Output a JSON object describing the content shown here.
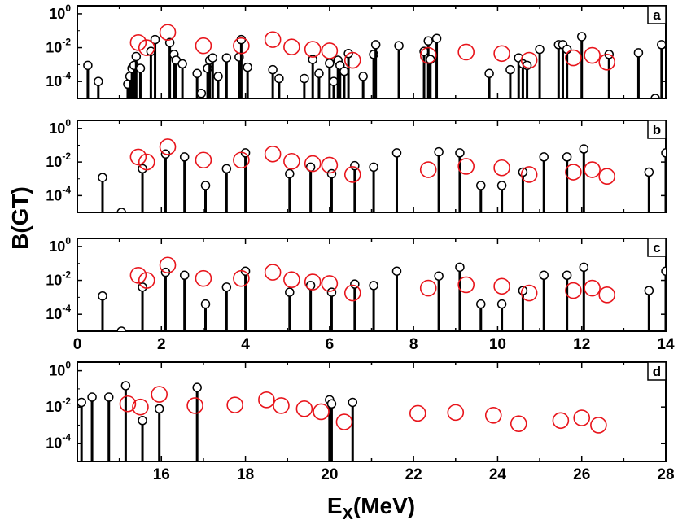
{
  "chart_data": {
    "type": "scatter",
    "ylabel": "B(GT)",
    "xlabel": "E",
    "xlabel_sub": "X",
    "xlabel_unit": "(MeV)",
    "yscale": "log",
    "ylim": [
      1e-05,
      3
    ],
    "y_ticks": [
      {
        "base": "10",
        "exp": "0",
        "value": 1
      },
      {
        "base": "10",
        "exp": "-2",
        "value": 0.01
      },
      {
        "base": "10",
        "exp": "-4",
        "value": 0.0001
      }
    ],
    "experiment": [
      {
        "x": 1.45,
        "y": 0.02
      },
      {
        "x": 1.65,
        "y": 0.01
      },
      {
        "x": 2.15,
        "y": 0.08
      },
      {
        "x": 3.0,
        "y": 0.013
      },
      {
        "x": 3.9,
        "y": 0.013
      },
      {
        "x": 4.65,
        "y": 0.03
      },
      {
        "x": 5.1,
        "y": 0.011
      },
      {
        "x": 5.6,
        "y": 0.008
      },
      {
        "x": 6.0,
        "y": 0.0065
      },
      {
        "x": 6.55,
        "y": 0.0018
      },
      {
        "x": 8.35,
        "y": 0.0035
      },
      {
        "x": 9.25,
        "y": 0.0055
      },
      {
        "x": 10.1,
        "y": 0.0045
      },
      {
        "x": 10.75,
        "y": 0.0018
      },
      {
        "x": 11.8,
        "y": 0.0025
      },
      {
        "x": 12.25,
        "y": 0.0035
      },
      {
        "x": 12.6,
        "y": 0.0014
      },
      {
        "x": 15.2,
        "y": 0.015
      },
      {
        "x": 15.5,
        "y": 0.01
      },
      {
        "x": 15.95,
        "y": 0.05
      },
      {
        "x": 16.8,
        "y": 0.012
      },
      {
        "x": 17.75,
        "y": 0.013
      },
      {
        "x": 18.5,
        "y": 0.025
      },
      {
        "x": 18.85,
        "y": 0.012
      },
      {
        "x": 19.4,
        "y": 0.008
      },
      {
        "x": 19.8,
        "y": 0.0055
      },
      {
        "x": 20.35,
        "y": 0.0015
      },
      {
        "x": 22.1,
        "y": 0.0045
      },
      {
        "x": 23.0,
        "y": 0.005
      },
      {
        "x": 23.9,
        "y": 0.0035
      },
      {
        "x": 24.5,
        "y": 0.0012
      },
      {
        "x": 25.5,
        "y": 0.0018
      },
      {
        "x": 26.0,
        "y": 0.0025
      },
      {
        "x": 26.4,
        "y": 0.001
      }
    ],
    "panels": [
      {
        "tag": "a",
        "xlim": [
          0,
          14
        ],
        "x_ticks": [],
        "theory": [
          {
            "x": 0.25,
            "y": 0.0009
          },
          {
            "x": 0.5,
            "y": 0.0001
          },
          {
            "x": 1.2,
            "y": 7e-05
          },
          {
            "x": 1.25,
            "y": 0.0002
          },
          {
            "x": 1.3,
            "y": 0.0006
          },
          {
            "x": 1.35,
            "y": 0.0009
          },
          {
            "x": 1.4,
            "y": 0.003
          },
          {
            "x": 1.5,
            "y": 0.0006
          },
          {
            "x": 1.75,
            "y": 0.006
          },
          {
            "x": 1.85,
            "y": 0.03
          },
          {
            "x": 2.2,
            "y": 0.02
          },
          {
            "x": 2.3,
            "y": 0.004
          },
          {
            "x": 2.35,
            "y": 0.0018
          },
          {
            "x": 2.5,
            "y": 0.0011
          },
          {
            "x": 2.85,
            "y": 0.0003
          },
          {
            "x": 2.95,
            "y": 2e-05
          },
          {
            "x": 3.1,
            "y": 0.0006
          },
          {
            "x": 3.15,
            "y": 0.0018
          },
          {
            "x": 3.22,
            "y": 0.0025
          },
          {
            "x": 3.35,
            "y": 0.0002
          },
          {
            "x": 3.55,
            "y": 0.0025
          },
          {
            "x": 3.85,
            "y": 0.0028
          },
          {
            "x": 3.9,
            "y": 0.03
          },
          {
            "x": 4.05,
            "y": 0.0007
          },
          {
            "x": 4.65,
            "y": 0.0005
          },
          {
            "x": 4.8,
            "y": 0.00015
          },
          {
            "x": 5.4,
            "y": 0.00015
          },
          {
            "x": 5.6,
            "y": 0.002
          },
          {
            "x": 5.75,
            "y": 0.0003
          },
          {
            "x": 6.0,
            "y": 0.0012
          },
          {
            "x": 6.1,
            "y": 0.0001
          },
          {
            "x": 6.2,
            "y": 0.0018
          },
          {
            "x": 6.25,
            "y": 0.0009
          },
          {
            "x": 6.35,
            "y": 0.0004
          },
          {
            "x": 6.45,
            "y": 0.0045
          },
          {
            "x": 6.8,
            "y": 0.0002
          },
          {
            "x": 7.05,
            "y": 0.004
          },
          {
            "x": 7.1,
            "y": 0.015
          },
          {
            "x": 7.65,
            "y": 0.013
          },
          {
            "x": 8.25,
            "y": 0.006
          },
          {
            "x": 8.35,
            "y": 0.025
          },
          {
            "x": 8.4,
            "y": 0.002
          },
          {
            "x": 8.55,
            "y": 0.035
          },
          {
            "x": 9.8,
            "y": 0.0003
          },
          {
            "x": 10.3,
            "y": 0.0005
          },
          {
            "x": 10.5,
            "y": 0.0025
          },
          {
            "x": 10.6,
            "y": 0.0011
          },
          {
            "x": 10.7,
            "y": 0.0009
          },
          {
            "x": 11.0,
            "y": 0.008
          },
          {
            "x": 11.45,
            "y": 0.015
          },
          {
            "x": 11.55,
            "y": 0.015
          },
          {
            "x": 11.65,
            "y": 0.008
          },
          {
            "x": 12.0,
            "y": 0.045
          },
          {
            "x": 12.65,
            "y": 0.004
          },
          {
            "x": 13.35,
            "y": 0.005
          },
          {
            "x": 13.9,
            "y": 0.015
          },
          {
            "x": 13.75,
            "y": 1e-05
          }
        ]
      },
      {
        "tag": "b",
        "xlim": [
          0,
          14
        ],
        "x_ticks": [],
        "theory": [
          {
            "x": 0.6,
            "y": 0.0012
          },
          {
            "x": 1.05,
            "y": 1e-05
          },
          {
            "x": 1.55,
            "y": 0.004
          },
          {
            "x": 2.1,
            "y": 0.03
          },
          {
            "x": 2.55,
            "y": 0.02
          },
          {
            "x": 3.05,
            "y": 0.0004
          },
          {
            "x": 3.55,
            "y": 0.004
          },
          {
            "x": 4.0,
            "y": 0.035
          },
          {
            "x": 5.05,
            "y": 0.002
          },
          {
            "x": 5.55,
            "y": 0.005
          },
          {
            "x": 6.05,
            "y": 0.002
          },
          {
            "x": 6.6,
            "y": 0.006
          },
          {
            "x": 7.05,
            "y": 0.005
          },
          {
            "x": 7.6,
            "y": 0.035
          },
          {
            "x": 8.6,
            "y": 0.04
          },
          {
            "x": 9.1,
            "y": 0.035
          },
          {
            "x": 9.6,
            "y": 0.0004
          },
          {
            "x": 10.1,
            "y": 0.0004
          },
          {
            "x": 10.6,
            "y": 0.0025
          },
          {
            "x": 11.1,
            "y": 0.02
          },
          {
            "x": 11.65,
            "y": 0.02
          },
          {
            "x": 12.05,
            "y": 0.06
          },
          {
            "x": 13.6,
            "y": 0.0025
          },
          {
            "x": 14.0,
            "y": 0.035
          }
        ]
      },
      {
        "tag": "c",
        "xlim": [
          0,
          14
        ],
        "x_ticks": [
          "0",
          "2",
          "4",
          "6",
          "8",
          "10",
          "12",
          "14"
        ],
        "theory": [
          {
            "x": 0.6,
            "y": 0.0012
          },
          {
            "x": 1.05,
            "y": 1e-05
          },
          {
            "x": 1.55,
            "y": 0.004
          },
          {
            "x": 2.1,
            "y": 0.03
          },
          {
            "x": 2.55,
            "y": 0.02
          },
          {
            "x": 3.05,
            "y": 0.0004
          },
          {
            "x": 3.55,
            "y": 0.004
          },
          {
            "x": 4.0,
            "y": 0.035
          },
          {
            "x": 5.05,
            "y": 0.002
          },
          {
            "x": 5.55,
            "y": 0.005
          },
          {
            "x": 6.05,
            "y": 0.002
          },
          {
            "x": 6.6,
            "y": 0.006
          },
          {
            "x": 7.05,
            "y": 0.005
          },
          {
            "x": 7.6,
            "y": 0.035
          },
          {
            "x": 8.6,
            "y": 0.018
          },
          {
            "x": 9.1,
            "y": 0.06
          },
          {
            "x": 9.6,
            "y": 0.0004
          },
          {
            "x": 10.1,
            "y": 0.0004
          },
          {
            "x": 10.6,
            "y": 0.0025
          },
          {
            "x": 11.1,
            "y": 0.02
          },
          {
            "x": 11.65,
            "y": 0.02
          },
          {
            "x": 12.05,
            "y": 0.06
          },
          {
            "x": 13.6,
            "y": 0.0025
          },
          {
            "x": 14.0,
            "y": 0.035
          }
        ]
      },
      {
        "tag": "d",
        "xlim": [
          14,
          28
        ],
        "x_ticks": [
          "16",
          "18",
          "20",
          "22",
          "24",
          "26",
          "28"
        ],
        "theory": [
          {
            "x": 14.1,
            "y": 0.018
          },
          {
            "x": 14.35,
            "y": 0.035
          },
          {
            "x": 14.75,
            "y": 0.035
          },
          {
            "x": 15.15,
            "y": 0.15
          },
          {
            "x": 15.55,
            "y": 0.0018
          },
          {
            "x": 15.95,
            "y": 0.008
          },
          {
            "x": 16.85,
            "y": 0.12
          },
          {
            "x": 20.0,
            "y": 0.025
          },
          {
            "x": 20.05,
            "y": 0.015
          },
          {
            "x": 20.55,
            "y": 0.018
          }
        ]
      }
    ]
  }
}
